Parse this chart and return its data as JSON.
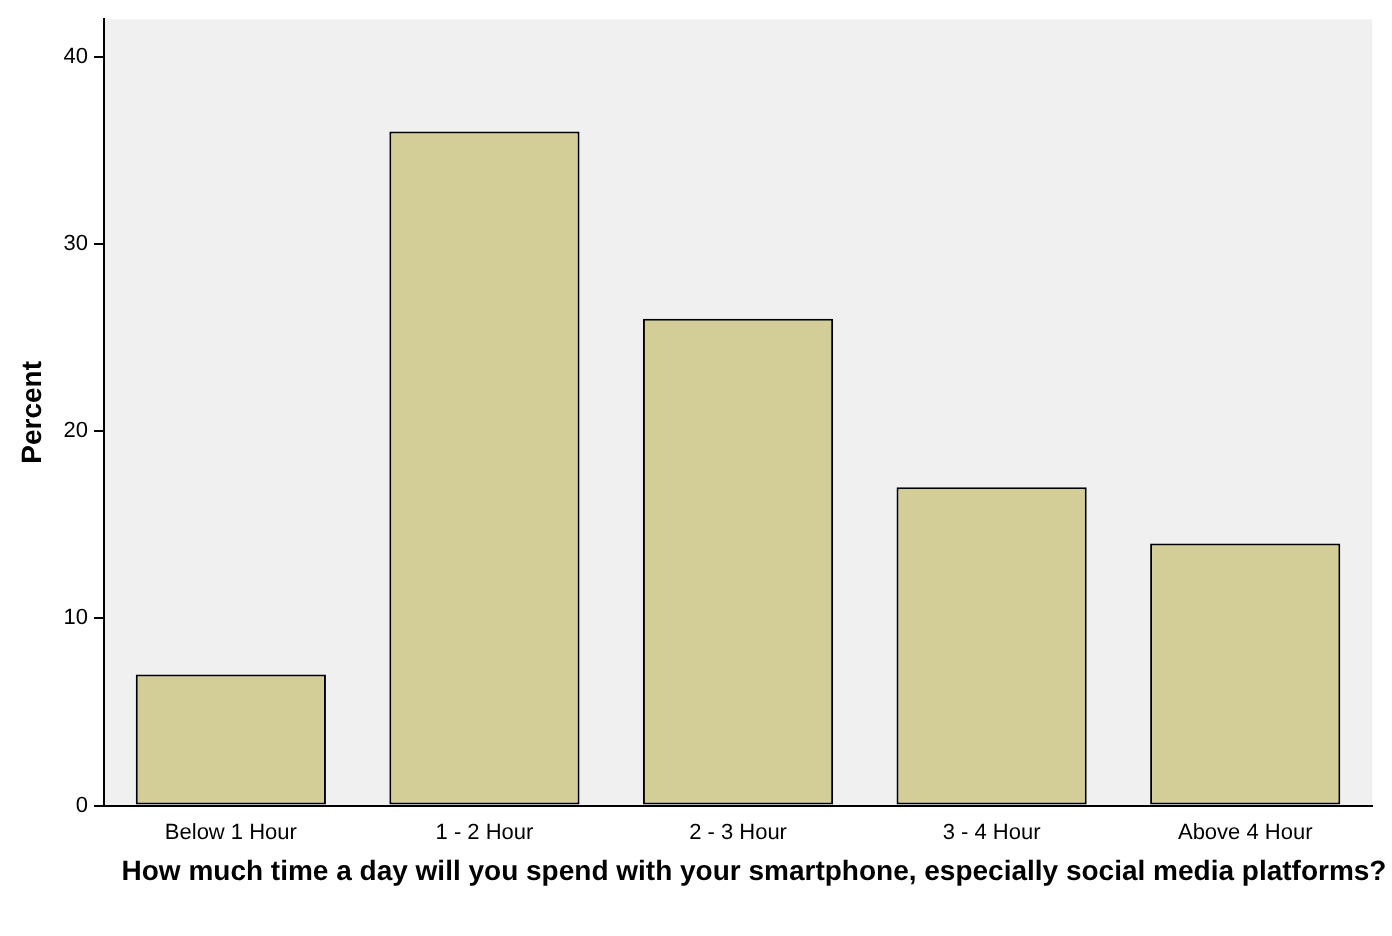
{
  "chart_data": {
    "type": "bar",
    "xlabel": "How much time a day will you spend with your smartphone, especially social media platforms?",
    "ylabel": "Percent",
    "categories": [
      "Below 1 Hour",
      "1 - 2 Hour",
      "2 - 3 Hour",
      "3 - 4 Hour",
      "Above 4 Hour"
    ],
    "values": [
      7,
      36,
      26,
      17,
      14
    ],
    "color": "#d3ce97",
    "ylim": [
      0,
      42
    ],
    "yticks": [
      0,
      10,
      20,
      30,
      40
    ],
    "grid": false,
    "legend": false
  }
}
